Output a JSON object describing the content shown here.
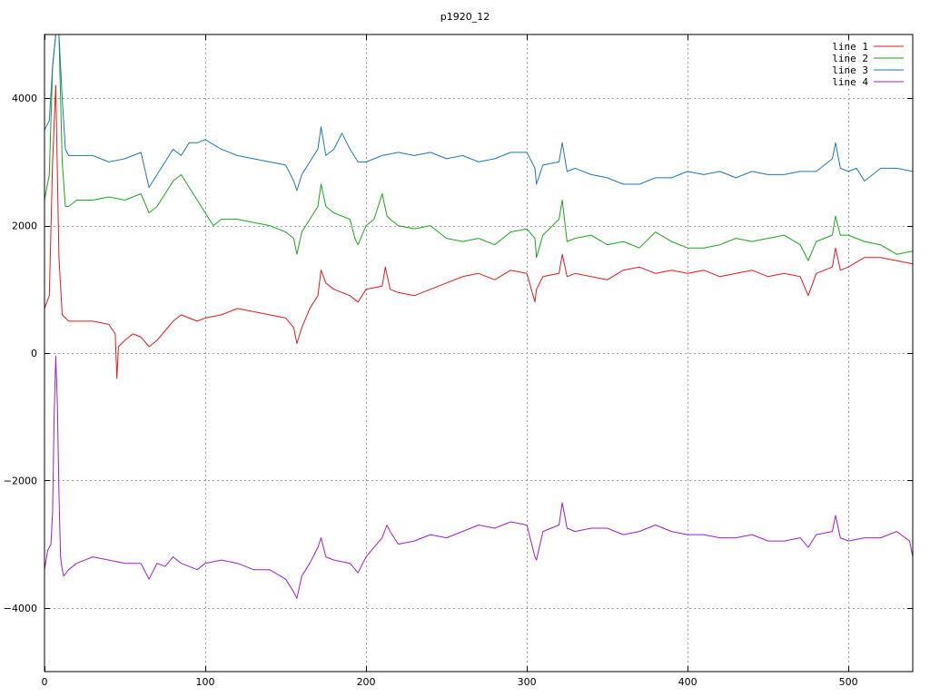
{
  "chart_data": {
    "type": "line",
    "title": "p1920_12",
    "xlabel": "",
    "ylabel": "",
    "xlim": [
      0,
      540
    ],
    "ylim": [
      -5000,
      5000
    ],
    "x_ticks": [
      0,
      100,
      200,
      300,
      400,
      500
    ],
    "y_ticks": [
      -4000,
      -2000,
      0,
      2000,
      4000
    ],
    "grid": true,
    "legend_position": "top-right",
    "series": [
      {
        "name": "line 1",
        "color": "#e41a1c",
        "x": [
          0,
          3,
          5,
          7,
          9,
          11,
          15,
          20,
          30,
          40,
          44,
          45,
          46,
          50,
          55,
          60,
          65,
          70,
          75,
          80,
          85,
          90,
          95,
          100,
          110,
          120,
          130,
          140,
          150,
          155,
          157,
          160,
          165,
          170,
          172,
          175,
          180,
          190,
          195,
          200,
          210,
          212,
          215,
          220,
          230,
          240,
          250,
          260,
          270,
          280,
          290,
          300,
          305,
          306,
          310,
          320,
          322,
          325,
          330,
          340,
          350,
          360,
          370,
          380,
          390,
          400,
          410,
          420,
          430,
          440,
          450,
          460,
          470,
          475,
          480,
          490,
          492,
          495,
          500,
          510,
          520,
          530,
          540
        ],
        "y": [
          700,
          900,
          3000,
          4200,
          1500,
          600,
          500,
          500,
          500,
          450,
          300,
          -400,
          100,
          200,
          300,
          250,
          100,
          200,
          350,
          500,
          600,
          550,
          500,
          550,
          600,
          700,
          650,
          600,
          550,
          400,
          150,
          400,
          700,
          900,
          1300,
          1100,
          1000,
          900,
          800,
          1000,
          1050,
          1350,
          1000,
          950,
          900,
          1000,
          1100,
          1200,
          1250,
          1150,
          1300,
          1250,
          800,
          1000,
          1200,
          1250,
          1550,
          1200,
          1250,
          1200,
          1150,
          1300,
          1350,
          1250,
          1300,
          1250,
          1300,
          1200,
          1250,
          1300,
          1200,
          1250,
          1200,
          900,
          1250,
          1350,
          1650,
          1300,
          1350,
          1500,
          1500,
          1450,
          1400
        ]
      },
      {
        "name": "line 2",
        "color": "#1aa61a",
        "x": [
          0,
          3,
          5,
          7,
          9,
          11,
          13,
          15,
          20,
          30,
          40,
          50,
          60,
          65,
          70,
          75,
          80,
          85,
          90,
          95,
          100,
          105,
          110,
          120,
          130,
          140,
          150,
          155,
          157,
          160,
          165,
          170,
          172,
          175,
          180,
          190,
          193,
          195,
          200,
          205,
          210,
          213,
          215,
          220,
          230,
          240,
          250,
          260,
          270,
          280,
          290,
          300,
          305,
          306,
          310,
          320,
          322,
          325,
          330,
          340,
          350,
          360,
          370,
          380,
          390,
          400,
          410,
          420,
          430,
          440,
          450,
          460,
          470,
          475,
          480,
          490,
          492,
          495,
          500,
          510,
          520,
          530,
          540
        ],
        "y": [
          2400,
          2800,
          4500,
          5000,
          5000,
          3000,
          2300,
          2300,
          2400,
          2400,
          2450,
          2400,
          2500,
          2200,
          2300,
          2500,
          2700,
          2800,
          2600,
          2400,
          2200,
          2000,
          2100,
          2100,
          2050,
          2000,
          1900,
          1800,
          1550,
          1900,
          2100,
          2300,
          2650,
          2300,
          2200,
          2100,
          1800,
          1700,
          2000,
          2100,
          2500,
          2150,
          2100,
          2000,
          1950,
          2000,
          1800,
          1750,
          1800,
          1700,
          1900,
          1950,
          1800,
          1500,
          1850,
          2100,
          2400,
          1750,
          1800,
          1850,
          1700,
          1750,
          1650,
          1900,
          1750,
          1650,
          1650,
          1700,
          1800,
          1750,
          1800,
          1850,
          1700,
          1450,
          1750,
          1850,
          2150,
          1850,
          1850,
          1750,
          1700,
          1550,
          1600
        ]
      },
      {
        "name": "line 3",
        "color": "#1f78b4",
        "x": [
          0,
          3,
          5,
          7,
          9,
          11,
          13,
          15,
          20,
          30,
          40,
          50,
          60,
          65,
          70,
          75,
          80,
          85,
          90,
          95,
          100,
          110,
          120,
          130,
          140,
          150,
          155,
          157,
          160,
          165,
          170,
          172,
          175,
          180,
          185,
          190,
          195,
          200,
          210,
          220,
          230,
          240,
          250,
          260,
          270,
          280,
          290,
          300,
          305,
          306,
          310,
          320,
          322,
          325,
          330,
          340,
          350,
          360,
          370,
          380,
          390,
          400,
          410,
          420,
          430,
          440,
          450,
          460,
          470,
          480,
          490,
          492,
          495,
          500,
          505,
          510,
          520,
          530,
          540
        ],
        "y": [
          3500,
          3650,
          4500,
          5000,
          5000,
          4000,
          3200,
          3100,
          3100,
          3100,
          3000,
          3050,
          3150,
          2600,
          2800,
          3000,
          3200,
          3100,
          3300,
          3300,
          3350,
          3200,
          3100,
          3050,
          3000,
          2950,
          2700,
          2550,
          2800,
          3000,
          3200,
          3550,
          3100,
          3200,
          3450,
          3200,
          3000,
          3000,
          3100,
          3150,
          3100,
          3150,
          3050,
          3100,
          3000,
          3050,
          3150,
          3150,
          2900,
          2650,
          2950,
          3000,
          3300,
          2850,
          2900,
          2800,
          2750,
          2650,
          2650,
          2750,
          2750,
          2850,
          2800,
          2850,
          2750,
          2850,
          2800,
          2800,
          2850,
          2850,
          3050,
          3300,
          2900,
          2850,
          2900,
          2700,
          2900,
          2900,
          2850
        ]
      },
      {
        "name": "line 4",
        "color": "#9b20d0",
        "x": [
          0,
          2,
          4,
          5,
          6,
          7,
          8,
          9,
          10,
          11,
          12,
          15,
          20,
          30,
          40,
          50,
          60,
          65,
          70,
          75,
          80,
          85,
          90,
          95,
          100,
          110,
          120,
          130,
          140,
          150,
          155,
          157,
          160,
          165,
          170,
          172,
          175,
          180,
          190,
          195,
          200,
          205,
          210,
          213,
          215,
          220,
          230,
          240,
          250,
          260,
          270,
          280,
          290,
          300,
          305,
          306,
          310,
          320,
          322,
          325,
          330,
          340,
          350,
          360,
          370,
          380,
          390,
          400,
          410,
          420,
          430,
          440,
          450,
          460,
          470,
          475,
          480,
          490,
          492,
          495,
          500,
          510,
          520,
          530,
          538,
          540
        ],
        "y": [
          -3400,
          -3100,
          -3000,
          -2500,
          -1000,
          -50,
          -800,
          -2200,
          -3200,
          -3400,
          -3500,
          -3400,
          -3300,
          -3200,
          -3250,
          -3300,
          -3300,
          -3550,
          -3300,
          -3350,
          -3200,
          -3300,
          -3350,
          -3400,
          -3300,
          -3250,
          -3300,
          -3400,
          -3400,
          -3550,
          -3750,
          -3850,
          -3500,
          -3300,
          -3050,
          -2900,
          -3200,
          -3250,
          -3300,
          -3450,
          -3200,
          -3050,
          -2900,
          -2700,
          -2800,
          -3000,
          -2950,
          -2850,
          -2900,
          -2800,
          -2700,
          -2750,
          -2650,
          -2700,
          -3200,
          -3250,
          -2800,
          -2700,
          -2350,
          -2750,
          -2800,
          -2750,
          -2750,
          -2850,
          -2800,
          -2700,
          -2800,
          -2850,
          -2850,
          -2900,
          -2900,
          -2850,
          -2950,
          -2950,
          -2900,
          -3050,
          -2850,
          -2800,
          -2550,
          -2900,
          -2950,
          -2900,
          -2900,
          -2800,
          -2950,
          -3200
        ]
      }
    ]
  }
}
